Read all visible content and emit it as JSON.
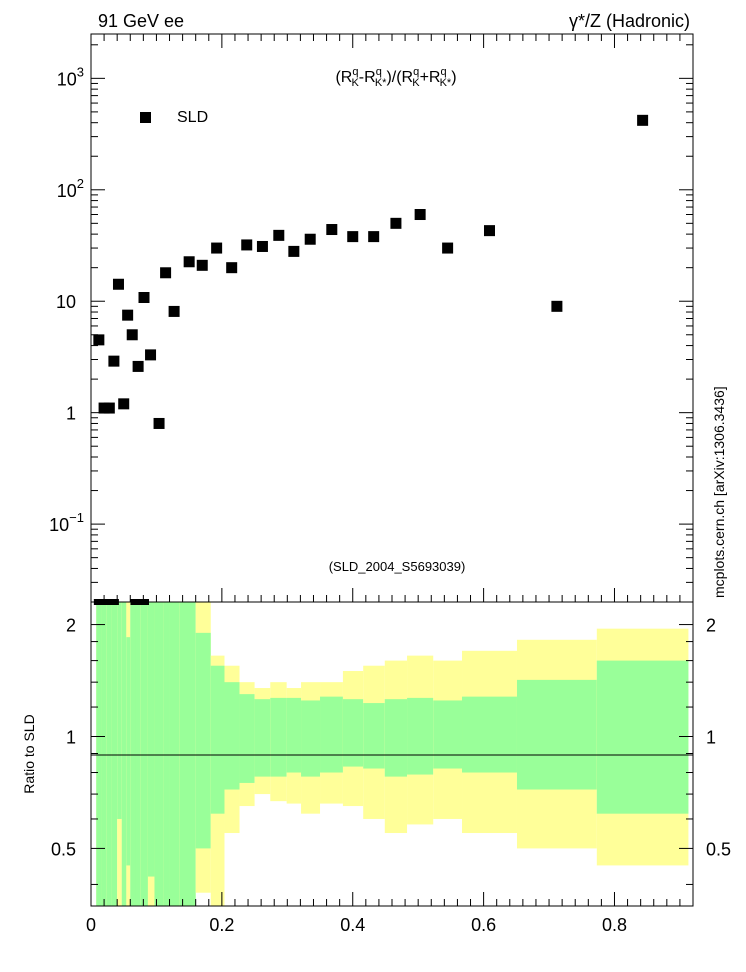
{
  "header": {
    "left_label": "91 GeV ee",
    "right_label": "γ*/Z (Hadronic)"
  },
  "side_label": "mcplots.cern.ch [arXiv:1306.3436]",
  "chart_data": [
    {
      "type": "scatter",
      "title": "(R^q_K - R^q_K*)/(R^q_K + R^q_K*)",
      "title_parts": [
        "(R",
        "q",
        "K",
        "-R",
        "q",
        "K*",
        ")/(R",
        "q",
        "K",
        "+R",
        "q",
        "K*",
        ")"
      ],
      "analysis_label": "(SLD_2004_S5693039)",
      "xlim": [
        0,
        0.92
      ],
      "ylim": [
        0.02,
        2500
      ],
      "yscale": "log",
      "y_ticks": [
        {
          "value": 0.1,
          "base": "10",
          "exp": "−1"
        },
        {
          "value": 1,
          "base": "1",
          "exp": ""
        },
        {
          "value": 10,
          "base": "10",
          "exp": ""
        },
        {
          "value": 100,
          "base": "10",
          "exp": "2"
        },
        {
          "value": 1000,
          "base": "10",
          "exp": "3"
        }
      ],
      "legend": {
        "position": "top-left",
        "entries": [
          {
            "name": "SLD",
            "marker": "square",
            "color": "#000000"
          }
        ]
      },
      "series": [
        {
          "name": "SLD",
          "x": [
            0.012,
            0.02,
            0.028,
            0.035,
            0.042,
            0.05,
            0.056,
            0.063,
            0.072,
            0.081,
            0.091,
            0.104,
            0.114,
            0.127,
            0.15,
            0.17,
            0.192,
            0.215,
            0.238,
            0.262,
            0.287,
            0.31,
            0.335,
            0.368,
            0.4,
            0.432,
            0.466,
            0.503,
            0.545,
            0.609,
            0.712,
            0.843
          ],
          "y": [
            4.5,
            1.1,
            1.1,
            2.9,
            14.2,
            1.2,
            7.5,
            5.0,
            2.6,
            10.8,
            3.3,
            0.8,
            18.0,
            8.1,
            22.6,
            21.0,
            30.0,
            20.0,
            32.0,
            31.0,
            39.0,
            28.0,
            36.0,
            44.0,
            38.0,
            38.0,
            50.0,
            60.0,
            30.0,
            43.0,
            9.0,
            420.0
          ]
        }
      ]
    },
    {
      "type": "area",
      "ylabel": "Ratio to SLD",
      "xlim": [
        0,
        0.92
      ],
      "ylim": [
        0.35,
        2.3
      ],
      "x_ticks": [
        "0",
        "0.2",
        "0.4",
        "0.6",
        "0.8"
      ],
      "x_tick_values": [
        0,
        0.2,
        0.4,
        0.6,
        0.8
      ],
      "y_ticks": [
        "0.5",
        "1",
        "2"
      ],
      "y_tick_values": [
        0.5,
        1,
        2
      ],
      "reference_line": 1,
      "bands": {
        "colors": {
          "outer": "#ffff99",
          "inner": "#99ff99"
        },
        "bins": [
          {
            "lo": 0.008,
            "hi": 0.016,
            "out_lo": 0.35,
            "out_hi": 2.3,
            "in_lo": 0.35,
            "in_hi": 2.3
          },
          {
            "lo": 0.016,
            "hi": 0.024,
            "out_lo": 0.35,
            "out_hi": 2.3,
            "in_lo": 0.35,
            "in_hi": 2.3
          },
          {
            "lo": 0.024,
            "hi": 0.032,
            "out_lo": 0.35,
            "out_hi": 2.3,
            "in_lo": 0.35,
            "in_hi": 2.3
          },
          {
            "lo": 0.032,
            "hi": 0.04,
            "out_lo": 0.35,
            "out_hi": 2.3,
            "in_lo": 0.35,
            "in_hi": 2.3
          },
          {
            "lo": 0.04,
            "hi": 0.047,
            "out_lo": 0.35,
            "out_hi": 2.3,
            "in_lo": 0.6,
            "in_hi": 2.3
          },
          {
            "lo": 0.047,
            "hi": 0.054,
            "out_lo": 0.35,
            "out_hi": 2.3,
            "in_lo": 0.35,
            "in_hi": 2.3
          },
          {
            "lo": 0.054,
            "hi": 0.06,
            "out_lo": 0.35,
            "out_hi": 2.3,
            "in_lo": 0.45,
            "in_hi": 1.85
          },
          {
            "lo": 0.06,
            "hi": 0.068,
            "out_lo": 0.35,
            "out_hi": 2.3,
            "in_lo": 0.35,
            "in_hi": 2.3
          },
          {
            "lo": 0.068,
            "hi": 0.076,
            "out_lo": 0.35,
            "out_hi": 2.3,
            "in_lo": 0.35,
            "in_hi": 2.3
          },
          {
            "lo": 0.076,
            "hi": 0.087,
            "out_lo": 0.35,
            "out_hi": 2.3,
            "in_lo": 0.35,
            "in_hi": 2.3
          },
          {
            "lo": 0.087,
            "hi": 0.097,
            "out_lo": 0.35,
            "out_hi": 2.3,
            "in_lo": 0.42,
            "in_hi": 2.3
          },
          {
            "lo": 0.097,
            "hi": 0.111,
            "out_lo": 0.35,
            "out_hi": 2.3,
            "in_lo": 0.35,
            "in_hi": 2.3
          },
          {
            "lo": 0.111,
            "hi": 0.12,
            "out_lo": 0.35,
            "out_hi": 2.3,
            "in_lo": 0.35,
            "in_hi": 2.3
          },
          {
            "lo": 0.12,
            "hi": 0.135,
            "out_lo": 0.35,
            "out_hi": 2.3,
            "in_lo": 0.35,
            "in_hi": 2.3
          },
          {
            "lo": 0.135,
            "hi": 0.16,
            "out_lo": 0.35,
            "out_hi": 2.3,
            "in_lo": 0.35,
            "in_hi": 2.3
          },
          {
            "lo": 0.16,
            "hi": 0.183,
            "out_lo": 0.38,
            "out_hi": 2.3,
            "in_lo": 0.5,
            "in_hi": 1.9
          },
          {
            "lo": 0.183,
            "hi": 0.204,
            "out_lo": 0.35,
            "out_hi": 1.65,
            "in_lo": 0.62,
            "in_hi": 1.55
          },
          {
            "lo": 0.204,
            "hi": 0.227,
            "out_lo": 0.55,
            "out_hi": 1.55,
            "in_lo": 0.72,
            "in_hi": 1.4
          },
          {
            "lo": 0.227,
            "hi": 0.25,
            "out_lo": 0.65,
            "out_hi": 1.4,
            "in_lo": 0.75,
            "in_hi": 1.3
          },
          {
            "lo": 0.25,
            "hi": 0.274,
            "out_lo": 0.7,
            "out_hi": 1.35,
            "in_lo": 0.78,
            "in_hi": 1.26
          },
          {
            "lo": 0.274,
            "hi": 0.299,
            "out_lo": 0.67,
            "out_hi": 1.4,
            "in_lo": 0.78,
            "in_hi": 1.27
          },
          {
            "lo": 0.299,
            "hi": 0.321,
            "out_lo": 0.66,
            "out_hi": 1.35,
            "in_lo": 0.8,
            "in_hi": 1.27
          },
          {
            "lo": 0.321,
            "hi": 0.35,
            "out_lo": 0.62,
            "out_hi": 1.4,
            "in_lo": 0.78,
            "in_hi": 1.25
          },
          {
            "lo": 0.35,
            "hi": 0.385,
            "out_lo": 0.66,
            "out_hi": 1.4,
            "in_lo": 0.8,
            "in_hi": 1.28
          },
          {
            "lo": 0.385,
            "hi": 0.416,
            "out_lo": 0.65,
            "out_hi": 1.5,
            "in_lo": 0.83,
            "in_hi": 1.26
          },
          {
            "lo": 0.416,
            "hi": 0.449,
            "out_lo": 0.6,
            "out_hi": 1.55,
            "in_lo": 0.82,
            "in_hi": 1.23
          },
          {
            "lo": 0.449,
            "hi": 0.483,
            "out_lo": 0.55,
            "out_hi": 1.6,
            "in_lo": 0.78,
            "in_hi": 1.26
          },
          {
            "lo": 0.483,
            "hi": 0.523,
            "out_lo": 0.58,
            "out_hi": 1.65,
            "in_lo": 0.79,
            "in_hi": 1.27
          },
          {
            "lo": 0.523,
            "hi": 0.567,
            "out_lo": 0.6,
            "out_hi": 1.6,
            "in_lo": 0.82,
            "in_hi": 1.25
          },
          {
            "lo": 0.567,
            "hi": 0.651,
            "out_lo": 0.55,
            "out_hi": 1.7,
            "in_lo": 0.8,
            "in_hi": 1.28
          },
          {
            "lo": 0.651,
            "hi": 0.773,
            "out_lo": 0.5,
            "out_hi": 1.82,
            "in_lo": 0.72,
            "in_hi": 1.42
          },
          {
            "lo": 0.773,
            "hi": 0.913,
            "out_lo": 0.45,
            "out_hi": 1.95,
            "in_lo": 0.62,
            "in_hi": 1.6
          }
        ]
      },
      "offscale_markers_x": [
        0.012,
        0.02,
        0.028,
        0.035,
        0.068,
        0.081
      ]
    }
  ]
}
